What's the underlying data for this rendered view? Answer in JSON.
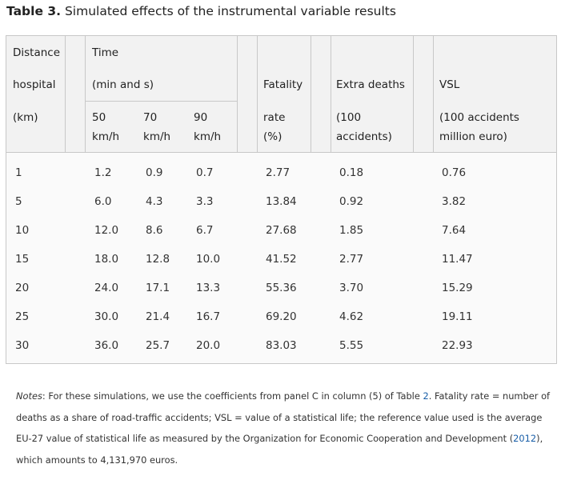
{
  "caption": {
    "label": "Table 3.",
    "title": "Simulated effects of the instrumental variable results"
  },
  "headers": {
    "distance": [
      "Distance",
      "hospital",
      "(km)"
    ],
    "time": [
      "Time",
      "(min and s)"
    ],
    "speeds": [
      [
        "50",
        "km/h"
      ],
      [
        "70",
        "km/h"
      ],
      [
        "90",
        "km/h"
      ]
    ],
    "fatality": [
      "Fatality",
      "rate",
      "(%)"
    ],
    "extra_deaths": [
      "Extra deaths",
      "(100",
      "accidents)"
    ],
    "vsl": [
      "VSL",
      "(100 accidents",
      "million euro)"
    ]
  },
  "rows": [
    [
      "1",
      "1.2",
      "0.9",
      "0.7",
      "2.77",
      "0.18",
      "0.76"
    ],
    [
      "5",
      "6.0",
      "4.3",
      "3.3",
      "13.84",
      "0.92",
      "3.82"
    ],
    [
      "10",
      "12.0",
      "8.6",
      "6.7",
      "27.68",
      "1.85",
      "7.64"
    ],
    [
      "15",
      "18.0",
      "12.8",
      "10.0",
      "41.52",
      "2.77",
      "11.47"
    ],
    [
      "20",
      "24.0",
      "17.1",
      "13.3",
      "55.36",
      "3.70",
      "15.29"
    ],
    [
      "25",
      "30.0",
      "21.4",
      "16.7",
      "69.20",
      "4.62",
      "19.11"
    ],
    [
      "30",
      "36.0",
      "25.7",
      "20.0",
      "83.03",
      "5.55",
      "22.93"
    ]
  ],
  "notes": {
    "label": "Notes",
    "part1": ": For these simulations, we use the coefficients from panel C in column (5) of Table ",
    "table_ref": "2",
    "part2": ". Fatality rate = number of deaths as a share of road-traffic accidents; VSL = value of a statistical life; the reference value used is the average EU-27 value of statistical life as measured by the Organization for Economic Cooperation and Development (",
    "year_ref": "2012",
    "part3": "), which amounts to 4,131,970 euros."
  }
}
